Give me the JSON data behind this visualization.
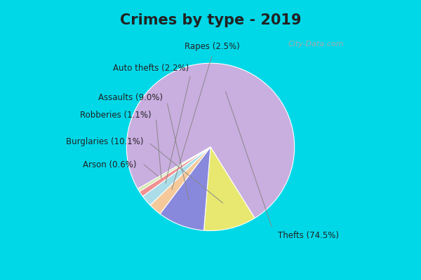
{
  "title": "Crimes by type - 2019",
  "labels": [
    "Thefts",
    "Burglaries",
    "Assaults",
    "Rapes",
    "Auto thefts",
    "Robberies",
    "Arson"
  ],
  "values": [
    74.5,
    10.1,
    9.0,
    2.5,
    2.2,
    1.1,
    0.6
  ],
  "colors": [
    "#c9aee0",
    "#e8e870",
    "#8888dd",
    "#f5c99a",
    "#aadde8",
    "#f09090",
    "#d4e8b0"
  ],
  "label_texts": [
    "Thefts (74.5%)",
    "Burglaries (10.1%)",
    "Assaults (9.0%)",
    "Rapes (2.5%)",
    "Auto thefts (2.2%)",
    "Robberies (1.1%)",
    "Arson (0.6%)"
  ],
  "background_top": "#00d8e8",
  "background_main": "#d0ecd8",
  "title_fontsize": 15,
  "label_fontsize": 8.5
}
